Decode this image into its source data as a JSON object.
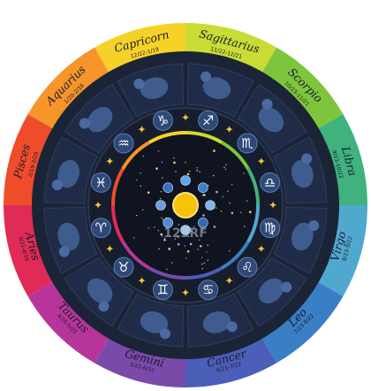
{
  "watermark": "123RF",
  "colors": {
    "background": "#ffffff",
    "dark_band": "#1b2436",
    "figure_band": "#202c47",
    "figure": "#3e5d8e",
    "glyph_badge": "#2e4977",
    "star": "#f4c63a",
    "sun": "#f6c20a",
    "center": "#0f1420"
  },
  "signs": [
    {
      "name": "Capricorn",
      "dates": "12/22-1/19",
      "glyph": "♑",
      "color": "#f6d229"
    },
    {
      "name": "Sagittarius",
      "dates": "11/22-12/21",
      "glyph": "♐",
      "color": "#c9dc34"
    },
    {
      "name": "Scorpio",
      "dates": "10/23-11/21",
      "glyph": "♏",
      "color": "#7cc53d"
    },
    {
      "name": "Libra",
      "dates": "9/23-10/22",
      "glyph": "♎",
      "color": "#3fb27e"
    },
    {
      "name": "Virgo",
      "dates": "8/23-9/22",
      "glyph": "♍",
      "color": "#51a8cf"
    },
    {
      "name": "Leo",
      "dates": "7/23-8/22",
      "glyph": "♌",
      "color": "#3a7fc6"
    },
    {
      "name": "Cancer",
      "dates": "6/21-7/22",
      "glyph": "♋",
      "color": "#4b5eb8"
    },
    {
      "name": "Gemini",
      "dates": "5/21-6/21",
      "glyph": "♊",
      "color": "#7a4aa8"
    },
    {
      "name": "Taurus",
      "dates": "4/20-5/20",
      "glyph": "♉",
      "color": "#b7359a"
    },
    {
      "name": "Aries",
      "dates": "3/21-4/19",
      "glyph": "♈",
      "color": "#e02b56"
    },
    {
      "name": "Pisces",
      "dates": "2/19-3/20",
      "glyph": "♓",
      "color": "#ef4c2c"
    },
    {
      "name": "Aquarius",
      "dates": "1/20-2/18",
      "glyph": "♒",
      "color": "#f5952a"
    }
  ]
}
